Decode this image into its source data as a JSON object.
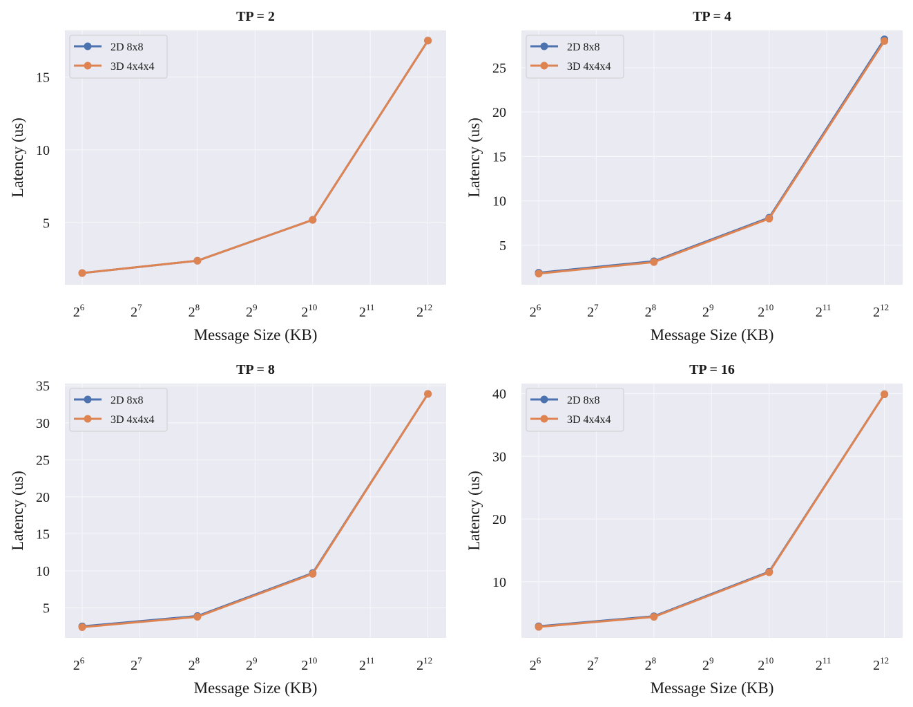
{
  "colors": {
    "panel_bg": "#eaeaf2",
    "grid": "#f7f7fb",
    "series": [
      "#4c72b0",
      "#dd8452"
    ]
  },
  "chart_data": [
    {
      "type": "line",
      "title": "TP = 2",
      "xlabel": "Message Size (KB)",
      "ylabel": "Latency (us)",
      "x_scale": "log2",
      "x": [
        64,
        256,
        1024,
        4096
      ],
      "x_ticks": [
        {
          "value": 64,
          "base": "2",
          "exp": "6"
        },
        {
          "value": 128,
          "base": "2",
          "exp": "7"
        },
        {
          "value": 256,
          "base": "2",
          "exp": "8"
        },
        {
          "value": 512,
          "base": "2",
          "exp": "9"
        },
        {
          "value": 1024,
          "base": "2",
          "exp": "10"
        },
        {
          "value": 2048,
          "base": "2",
          "exp": "11"
        },
        {
          "value": 4096,
          "base": "2",
          "exp": "12"
        }
      ],
      "xlim": [
        52,
        5100
      ],
      "ylim": [
        0.75,
        18.2
      ],
      "y_ticks": [
        5,
        10,
        15
      ],
      "legend": "top-left",
      "series": [
        {
          "name": "2D 8x8",
          "values": [
            1.55,
            2.4,
            5.2,
            17.5
          ]
        },
        {
          "name": "3D 4x4x4",
          "values": [
            1.55,
            2.4,
            5.2,
            17.5
          ]
        }
      ]
    },
    {
      "type": "line",
      "title": "TP = 4",
      "xlabel": "Message Size (KB)",
      "ylabel": "Latency (us)",
      "x_scale": "log2",
      "x": [
        64,
        256,
        1024,
        4096
      ],
      "x_ticks": [
        {
          "value": 64,
          "base": "2",
          "exp": "6"
        },
        {
          "value": 128,
          "base": "2",
          "exp": "7"
        },
        {
          "value": 256,
          "base": "2",
          "exp": "8"
        },
        {
          "value": 512,
          "base": "2",
          "exp": "9"
        },
        {
          "value": 1024,
          "base": "2",
          "exp": "10"
        },
        {
          "value": 2048,
          "base": "2",
          "exp": "11"
        },
        {
          "value": 4096,
          "base": "2",
          "exp": "12"
        }
      ],
      "xlim": [
        52,
        5100
      ],
      "ylim": [
        0.55,
        29.2
      ],
      "y_ticks": [
        5,
        10,
        15,
        20,
        25
      ],
      "legend": "top-left",
      "series": [
        {
          "name": "2D 8x8",
          "values": [
            1.9,
            3.2,
            8.1,
            28.2
          ]
        },
        {
          "name": "3D 4x4x4",
          "values": [
            1.8,
            3.1,
            8.0,
            28.0
          ]
        }
      ]
    },
    {
      "type": "line",
      "title": "TP = 8",
      "xlabel": "Message Size (KB)",
      "ylabel": "Latency (us)",
      "x_scale": "log2",
      "x": [
        64,
        256,
        1024,
        4096
      ],
      "x_ticks": [
        {
          "value": 64,
          "base": "2",
          "exp": "6"
        },
        {
          "value": 128,
          "base": "2",
          "exp": "7"
        },
        {
          "value": 256,
          "base": "2",
          "exp": "8"
        },
        {
          "value": 512,
          "base": "2",
          "exp": "9"
        },
        {
          "value": 1024,
          "base": "2",
          "exp": "10"
        },
        {
          "value": 2048,
          "base": "2",
          "exp": "11"
        },
        {
          "value": 4096,
          "base": "2",
          "exp": "12"
        }
      ],
      "xlim": [
        52,
        5100
      ],
      "ylim": [
        0.95,
        35.3
      ],
      "y_ticks": [
        5,
        10,
        15,
        20,
        25,
        30,
        35
      ],
      "legend": "top-left",
      "series": [
        {
          "name": "2D 8x8",
          "values": [
            2.5,
            3.9,
            9.7,
            33.9
          ]
        },
        {
          "name": "3D 4x4x4",
          "values": [
            2.4,
            3.8,
            9.6,
            33.9
          ]
        }
      ]
    },
    {
      "type": "line",
      "title": "TP = 16",
      "xlabel": "Message Size (KB)",
      "ylabel": "Latency (us)",
      "x_scale": "log2",
      "x": [
        64,
        256,
        1024,
        4096
      ],
      "x_ticks": [
        {
          "value": 64,
          "base": "2",
          "exp": "6"
        },
        {
          "value": 128,
          "base": "2",
          "exp": "7"
        },
        {
          "value": 256,
          "base": "2",
          "exp": "8"
        },
        {
          "value": 512,
          "base": "2",
          "exp": "9"
        },
        {
          "value": 1024,
          "base": "2",
          "exp": "10"
        },
        {
          "value": 2048,
          "base": "2",
          "exp": "11"
        },
        {
          "value": 4096,
          "base": "2",
          "exp": "12"
        }
      ],
      "xlim": [
        52,
        5100
      ],
      "ylim": [
        1.05,
        41.6
      ],
      "y_ticks": [
        10,
        20,
        30,
        40
      ],
      "legend": "top-left",
      "series": [
        {
          "name": "2D 8x8",
          "values": [
            2.9,
            4.5,
            11.6,
            39.9
          ]
        },
        {
          "name": "3D 4x4x4",
          "values": [
            2.8,
            4.4,
            11.5,
            39.9
          ]
        }
      ]
    }
  ]
}
